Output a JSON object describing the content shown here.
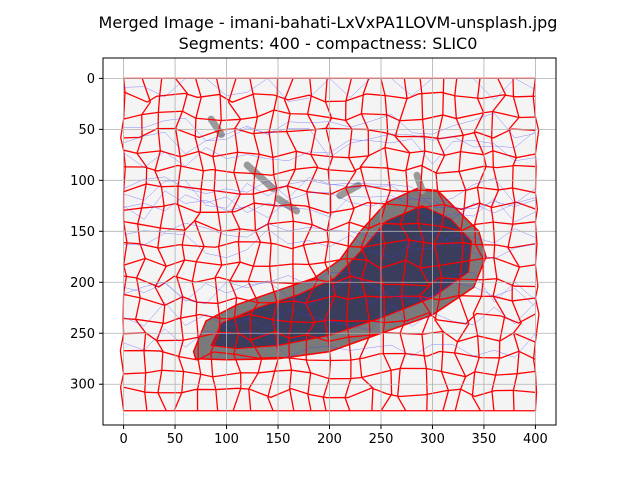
{
  "figure": {
    "title_line1": "Merged Image - imani-bahati-LxVxPA1LOVM-unsplash.jpg",
    "title_line2": "Segments: 400 - compactness: SLIC0"
  },
  "chart_data": {
    "type": "image",
    "grid": true,
    "x_ticks": [
      "0",
      "50",
      "100",
      "150",
      "200",
      "250",
      "300",
      "350",
      "400"
    ],
    "y_ticks": [
      "0",
      "50",
      "100",
      "150",
      "200",
      "250",
      "300"
    ],
    "xlim": [
      -20,
      420
    ],
    "ylim": [
      340,
      -20
    ],
    "image_extent": {
      "width": 400,
      "height": 326
    },
    "colors": {
      "background": "#f4f4f4",
      "segment_boundary": "#ff0000",
      "fine_boundary": "#4040ff",
      "shoe_dark": "#3a3d5c",
      "shoe_mid": "#7a7a7a",
      "shoe_light": "#9a9a9a",
      "grid": "#b0b0b0"
    }
  }
}
